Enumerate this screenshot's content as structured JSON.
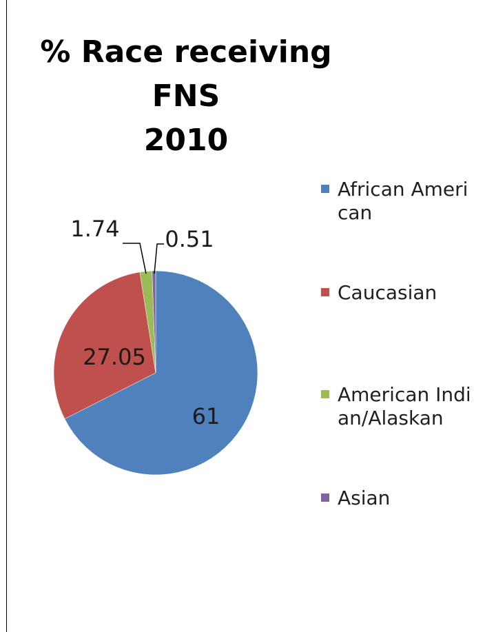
{
  "chart_data": {
    "type": "pie",
    "title": "% Race receiving FNS 2010",
    "title_lines": [
      "% Race receiving FNS",
      "2010"
    ],
    "legend_position": "right",
    "slices": [
      {
        "label": "African American",
        "value": 61,
        "value_label": "61",
        "color": "#4f81bd"
      },
      {
        "label": "Caucasian",
        "value": 27.05,
        "value_label": "27.05",
        "color": "#c0504d"
      },
      {
        "label": "American Indian/Alaskan",
        "value": 1.74,
        "value_label": "1.74",
        "color": "#9bbb59"
      },
      {
        "label": "Asian",
        "value": 0.51,
        "value_label": "0.51",
        "color": "#8064a2"
      }
    ]
  }
}
